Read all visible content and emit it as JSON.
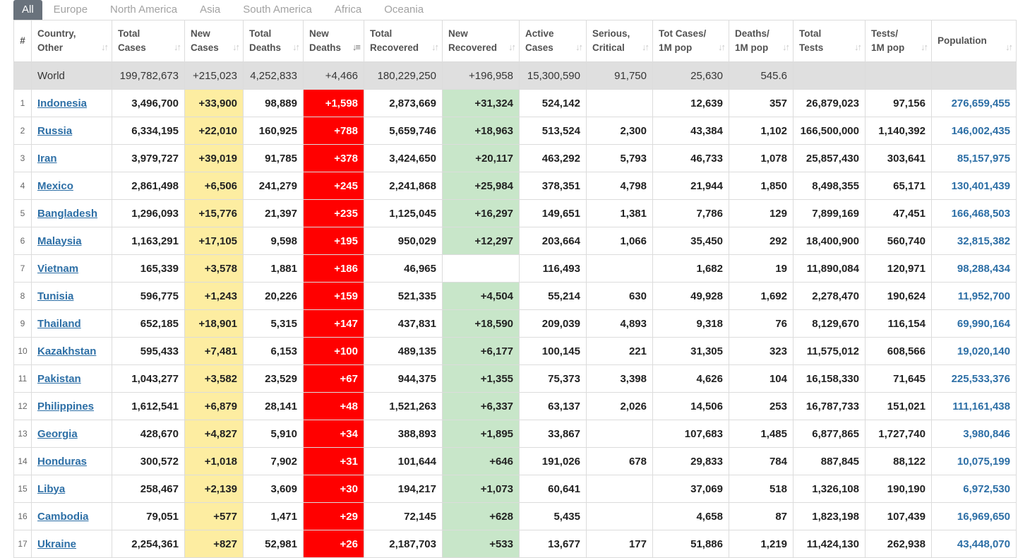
{
  "tabs": [
    "All",
    "Europe",
    "North America",
    "Asia",
    "South America",
    "Africa",
    "Oceania"
  ],
  "headers": [
    {
      "l1": "#",
      "l2": ""
    },
    {
      "l1": "Country,",
      "l2": "Other"
    },
    {
      "l1": "Total",
      "l2": "Cases"
    },
    {
      "l1": "New",
      "l2": "Cases"
    },
    {
      "l1": "Total",
      "l2": "Deaths"
    },
    {
      "l1": "New",
      "l2": "Deaths"
    },
    {
      "l1": "Total",
      "l2": "Recovered"
    },
    {
      "l1": "New",
      "l2": "Recovered"
    },
    {
      "l1": "Active",
      "l2": "Cases"
    },
    {
      "l1": "Serious,",
      "l2": "Critical"
    },
    {
      "l1": "Tot Cases/",
      "l2": "1M pop"
    },
    {
      "l1": "Deaths/",
      "l2": "1M pop"
    },
    {
      "l1": "Total",
      "l2": "Tests"
    },
    {
      "l1": "Tests/",
      "l2": "1M pop"
    },
    {
      "l1": "",
      "l2": "Population"
    }
  ],
  "icons": {
    "sort": "sort-icon",
    "sort_desc": "sort-desc-icon"
  },
  "colors": {
    "new_cases": "#fdeda1",
    "new_deaths": "#ff0000",
    "new_recovered": "#c8e6c9",
    "link": "#2d6fa6",
    "world_row": "#dfdfdf",
    "active_tab": "#69727c"
  },
  "world": [
    "",
    "World",
    "199,782,673",
    "+215,023",
    "4,252,833",
    "+4,466",
    "180,229,250",
    "+196,958",
    "15,300,590",
    "91,750",
    "25,630",
    "545.6",
    "",
    "",
    ""
  ],
  "rows": [
    [
      "1",
      "Indonesia",
      "3,496,700",
      "+33,900",
      "98,889",
      "+1,598",
      "2,873,669",
      "+31,324",
      "524,142",
      "",
      "12,639",
      "357",
      "26,879,023",
      "97,156",
      "276,659,455"
    ],
    [
      "2",
      "Russia",
      "6,334,195",
      "+22,010",
      "160,925",
      "+788",
      "5,659,746",
      "+18,963",
      "513,524",
      "2,300",
      "43,384",
      "1,102",
      "166,500,000",
      "1,140,392",
      "146,002,435"
    ],
    [
      "3",
      "Iran",
      "3,979,727",
      "+39,019",
      "91,785",
      "+378",
      "3,424,650",
      "+20,117",
      "463,292",
      "5,793",
      "46,733",
      "1,078",
      "25,857,430",
      "303,641",
      "85,157,975"
    ],
    [
      "4",
      "Mexico",
      "2,861,498",
      "+6,506",
      "241,279",
      "+245",
      "2,241,868",
      "+25,984",
      "378,351",
      "4,798",
      "21,944",
      "1,850",
      "8,498,355",
      "65,171",
      "130,401,439"
    ],
    [
      "5",
      "Bangladesh",
      "1,296,093",
      "+15,776",
      "21,397",
      "+235",
      "1,125,045",
      "+16,297",
      "149,651",
      "1,381",
      "7,786",
      "129",
      "7,899,169",
      "47,451",
      "166,468,503"
    ],
    [
      "6",
      "Malaysia",
      "1,163,291",
      "+17,105",
      "9,598",
      "+195",
      "950,029",
      "+12,297",
      "203,664",
      "1,066",
      "35,450",
      "292",
      "18,400,900",
      "560,740",
      "32,815,382"
    ],
    [
      "7",
      "Vietnam",
      "165,339",
      "+3,578",
      "1,881",
      "+186",
      "46,965",
      "",
      "116,493",
      "",
      "1,682",
      "19",
      "11,890,084",
      "120,971",
      "98,288,434"
    ],
    [
      "8",
      "Tunisia",
      "596,775",
      "+1,243",
      "20,226",
      "+159",
      "521,335",
      "+4,504",
      "55,214",
      "630",
      "49,928",
      "1,692",
      "2,278,470",
      "190,624",
      "11,952,700"
    ],
    [
      "9",
      "Thailand",
      "652,185",
      "+18,901",
      "5,315",
      "+147",
      "437,831",
      "+18,590",
      "209,039",
      "4,893",
      "9,318",
      "76",
      "8,129,670",
      "116,154",
      "69,990,164"
    ],
    [
      "10",
      "Kazakhstan",
      "595,433",
      "+7,481",
      "6,153",
      "+100",
      "489,135",
      "+6,177",
      "100,145",
      "221",
      "31,305",
      "323",
      "11,575,012",
      "608,566",
      "19,020,140"
    ],
    [
      "11",
      "Pakistan",
      "1,043,277",
      "+3,582",
      "23,529",
      "+67",
      "944,375",
      "+1,355",
      "75,373",
      "3,398",
      "4,626",
      "104",
      "16,158,330",
      "71,645",
      "225,533,376"
    ],
    [
      "12",
      "Philippines",
      "1,612,541",
      "+6,879",
      "28,141",
      "+48",
      "1,521,263",
      "+6,337",
      "63,137",
      "2,026",
      "14,506",
      "253",
      "16,787,733",
      "151,021",
      "111,161,438"
    ],
    [
      "13",
      "Georgia",
      "428,670",
      "+4,827",
      "5,910",
      "+34",
      "388,893",
      "+1,895",
      "33,867",
      "",
      "107,683",
      "1,485",
      "6,877,865",
      "1,727,740",
      "3,980,846"
    ],
    [
      "14",
      "Honduras",
      "300,572",
      "+1,018",
      "7,902",
      "+31",
      "101,644",
      "+646",
      "191,026",
      "678",
      "29,833",
      "784",
      "887,845",
      "88,122",
      "10,075,199"
    ],
    [
      "15",
      "Libya",
      "258,467",
      "+2,139",
      "3,609",
      "+30",
      "194,217",
      "+1,073",
      "60,641",
      "",
      "37,069",
      "518",
      "1,326,108",
      "190,190",
      "6,972,530"
    ],
    [
      "16",
      "Cambodia",
      "79,051",
      "+577",
      "1,471",
      "+29",
      "72,145",
      "+628",
      "5,435",
      "",
      "4,658",
      "87",
      "1,823,198",
      "107,439",
      "16,969,650"
    ],
    [
      "17",
      "Ukraine",
      "2,254,361",
      "+827",
      "52,981",
      "+26",
      "2,187,703",
      "+533",
      "13,677",
      "177",
      "51,886",
      "1,219",
      "11,424,130",
      "262,938",
      "43,448,070"
    ]
  ]
}
